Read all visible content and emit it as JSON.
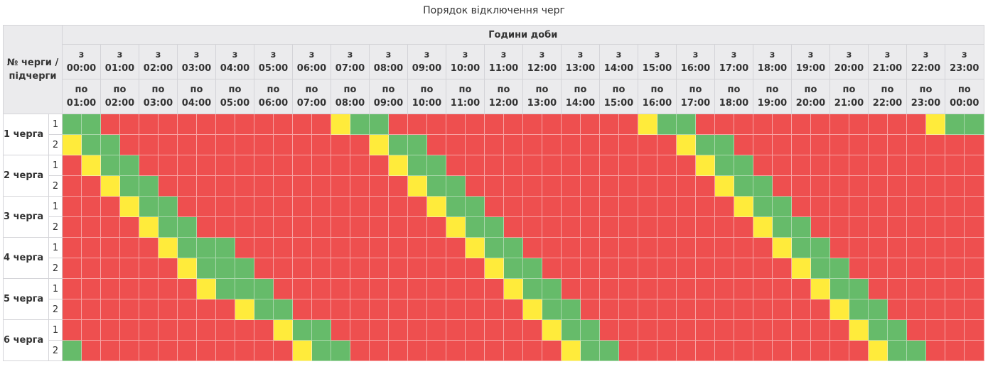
{
  "title": "Порядок відключення черг",
  "header": {
    "queue_label": "№ черги / підчерги",
    "hours_label": "Години доби",
    "from_prefix": "з",
    "to_prefix": "по"
  },
  "hours_from": [
    "00:00",
    "01:00",
    "02:00",
    "03:00",
    "04:00",
    "05:00",
    "06:00",
    "07:00",
    "08:00",
    "09:00",
    "10:00",
    "11:00",
    "12:00",
    "13:00",
    "14:00",
    "15:00",
    "16:00",
    "17:00",
    "18:00",
    "19:00",
    "20:00",
    "21:00",
    "22:00",
    "23:00"
  ],
  "hours_to": [
    "01:00",
    "02:00",
    "03:00",
    "04:00",
    "05:00",
    "06:00",
    "07:00",
    "08:00",
    "09:00",
    "10:00",
    "11:00",
    "12:00",
    "13:00",
    "14:00",
    "15:00",
    "16:00",
    "17:00",
    "18:00",
    "19:00",
    "20:00",
    "21:00",
    "22:00",
    "23:00",
    "00:00"
  ],
  "status_colors": {
    "off": "#ee4f4f",
    "possible": "#ffeb3b",
    "on": "#66bb6a"
  },
  "queues": [
    {
      "label": "1 черга",
      "subqueues": [
        {
          "label": "1",
          "cells": "GGRRRRRRRRRRRRYGGRRRRRRRRRRRRRYGGRRRRRRRRRRRRYGG"
        },
        {
          "label": "2",
          "cells": "YGGRRRRRRRRRRRRRYGGRRRRRRRRRRRRRYGGRRRRRRRRRRRRR"
        }
      ]
    },
    {
      "label": "2 черга",
      "subqueues": [
        {
          "label": "1",
          "cells": "RYGGRRRRRRRRRRRRRYGGRRRRRRRRRRRRRYGGRRRRRRRRRRRR"
        },
        {
          "label": "2",
          "cells": "RRYGGRRRRRRRRRRRRRYGGRRRRRRRRRRRRRYGGRRRRRRRRRRR"
        }
      ]
    },
    {
      "label": "3 черга",
      "subqueues": [
        {
          "label": "1",
          "cells": "RRRYGGRRRRRRRRRRRRRYGGRRRRRRRRRRRRRYGGRRRRRRRRRR"
        },
        {
          "label": "2",
          "cells": "RRRRYGGRRRRRRRRRRRRRYGGRRRRRRRRRRRRRYGGRRRRRRRRR"
        }
      ]
    },
    {
      "label": "4 черга",
      "subqueues": [
        {
          "label": "1",
          "cells": "RRRRRYGGGRRRRRRRRRRRRYGGRRRRRRRRRRRRRYGGRRRRRRRR"
        },
        {
          "label": "2",
          "cells": "RRRRRRYGGGRRRRRRRRRRRRYGGRRRRRRRRRRRRRYGGRRRRRRR"
        }
      ]
    },
    {
      "label": "5 черга",
      "subqueues": [
        {
          "label": "1",
          "cells": "RRRRRRRYGGGRRRRRRRRRRRRYGGRRRRRRRRRRRRRYGGRRRRRR"
        },
        {
          "label": "2",
          "cells": "RRRRRRRRRYGGRRRRRRRRRRRRYGGRRRRRRRRRRRRRYGGRRRRR"
        }
      ]
    },
    {
      "label": "6 черга",
      "subqueues": [
        {
          "label": "1",
          "cells": "RRRRRRRRRRRYGGRRRRRRRRRRRYGGRRRRRRRRRRRRRYGGRRRR"
        },
        {
          "label": "2",
          "cells": "GRRRRRRRRRRRYGGRRRRRRRRRRRYGGRRRRRRRRRRRRRYGGRRR"
        }
      ]
    }
  ]
}
